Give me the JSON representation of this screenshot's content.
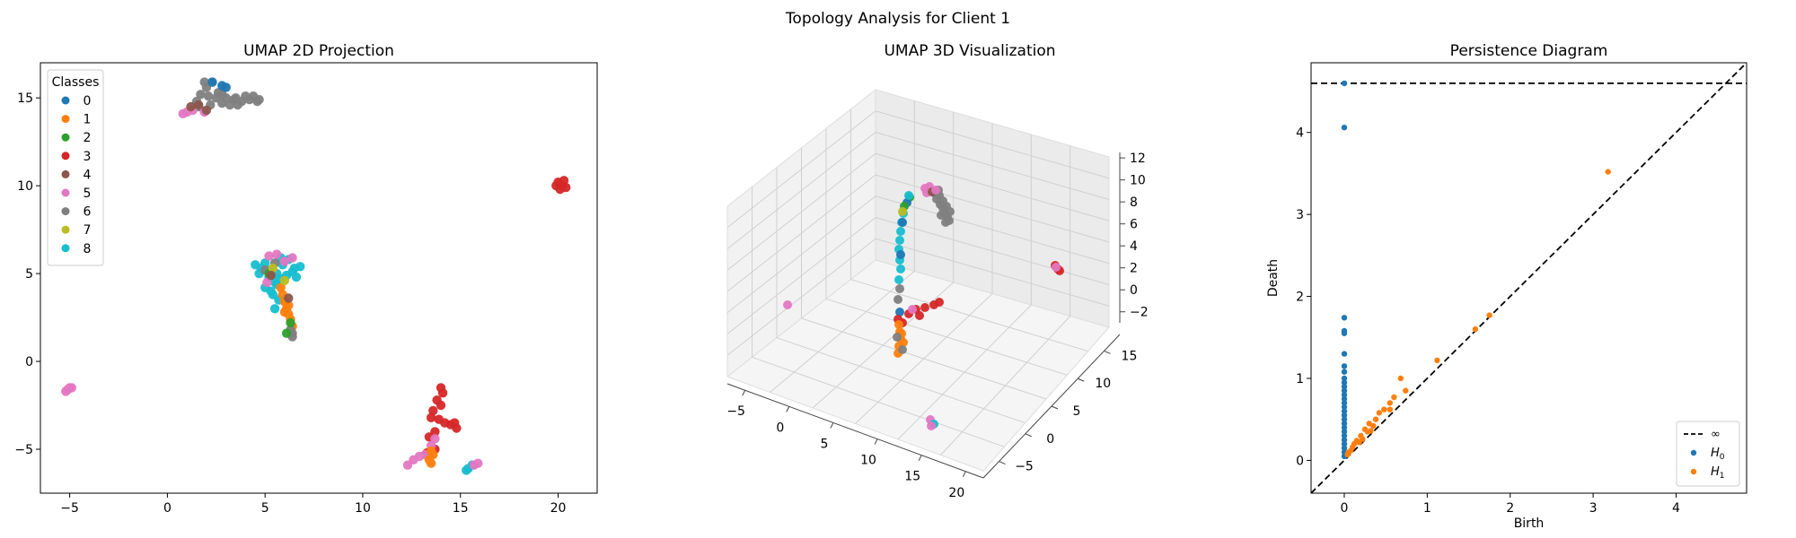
{
  "figure": {
    "title": "Topology Analysis for Client 1"
  },
  "chart_data": [
    {
      "type": "scatter",
      "title": "UMAP 2D Projection",
      "xlabel": "",
      "ylabel": "",
      "xlim": [
        -6.5,
        22
      ],
      "ylim": [
        -7.5,
        17
      ],
      "xticks": [
        -5,
        0,
        5,
        10,
        15,
        20
      ],
      "yticks": [
        -5,
        0,
        5,
        10,
        15
      ],
      "grid": false,
      "legend": {
        "title": "Classes",
        "placement": "top-left",
        "entries": [
          "0",
          "1",
          "2",
          "3",
          "4",
          "5",
          "6",
          "7",
          "8"
        ]
      },
      "class_colors": [
        "#1f77b4",
        "#ff7f0e",
        "#2ca02c",
        "#d62728",
        "#8c564b",
        "#e377c2",
        "#7f7f7f",
        "#bcbd22",
        "#17becf"
      ],
      "clusters": [
        {
          "class": "6",
          "points": [
            [
              1.7,
              15.2
            ],
            [
              2.0,
              15.6
            ],
            [
              2.3,
              15.9
            ],
            [
              2.6,
              15.3
            ],
            [
              3.0,
              15.0
            ],
            [
              3.4,
              14.9
            ],
            [
              3.8,
              14.8
            ],
            [
              4.2,
              14.9
            ],
            [
              4.6,
              14.8
            ],
            [
              1.5,
              14.8
            ],
            [
              2.2,
              14.6
            ],
            [
              2.8,
              14.7
            ],
            [
              3.6,
              14.6
            ],
            [
              4.0,
              15.1
            ],
            [
              1.9,
              15.9
            ],
            [
              2.5,
              15.0
            ],
            [
              3.2,
              14.6
            ],
            [
              4.4,
              15.1
            ],
            [
              1.6,
              14.5
            ],
            [
              2.1,
              15.1
            ],
            [
              2.8,
              15.2
            ],
            [
              3.5,
              15.0
            ],
            [
              4.7,
              14.9
            ]
          ]
        },
        {
          "class": "5",
          "points": [
            [
              0.8,
              14.1
            ],
            [
              1.0,
              14.2
            ],
            [
              1.3,
              14.3
            ],
            [
              1.9,
              14.2
            ],
            [
              -5.1,
              -1.6
            ],
            [
              -5.0,
              -1.5
            ],
            [
              -5.2,
              -1.7
            ],
            [
              -4.9,
              -1.5
            ]
          ]
        },
        {
          "class": "4",
          "points": [
            [
              1.2,
              14.5
            ],
            [
              1.6,
              14.6
            ],
            [
              2.0,
              14.3
            ]
          ]
        },
        {
          "class": "0",
          "points": [
            [
              2.3,
              15.9
            ],
            [
              2.8,
              15.7
            ],
            [
              3.0,
              15.6
            ]
          ]
        },
        {
          "class": "3",
          "points": [
            [
              20.0,
              10.2
            ],
            [
              20.2,
              10.0
            ],
            [
              20.4,
              9.9
            ],
            [
              20.1,
              9.8
            ],
            [
              20.3,
              10.3
            ],
            [
              19.9,
              10.0
            ],
            [
              14.0,
              -1.5
            ],
            [
              14.1,
              -1.8
            ],
            [
              13.8,
              -2.2
            ],
            [
              14.0,
              -2.5
            ],
            [
              13.6,
              -2.8
            ],
            [
              13.5,
              -3.2
            ],
            [
              13.9,
              -3.3
            ],
            [
              14.2,
              -3.5
            ],
            [
              14.5,
              -3.6
            ],
            [
              14.8,
              -3.8
            ],
            [
              14.7,
              -3.5
            ],
            [
              13.4,
              -4.3
            ],
            [
              13.7,
              -4.0
            ],
            [
              13.3,
              -5.2
            ],
            [
              13.7,
              -5.0
            ]
          ]
        },
        {
          "class": "8",
          "points": [
            [
              4.5,
              5.5
            ],
            [
              4.8,
              5.3
            ],
            [
              5.0,
              5.6
            ],
            [
              5.3,
              5.2
            ],
            [
              5.6,
              5.0
            ],
            [
              5.9,
              5.5
            ],
            [
              6.2,
              5.8
            ],
            [
              6.5,
              5.3
            ],
            [
              6.8,
              5.4
            ],
            [
              5.2,
              4.8
            ],
            [
              5.5,
              4.5
            ],
            [
              5.8,
              4.7
            ],
            [
              6.1,
              4.9
            ],
            [
              6.4,
              5.1
            ],
            [
              5.0,
              4.2
            ],
            [
              5.3,
              4.0
            ],
            [
              5.6,
              4.4
            ],
            [
              5.4,
              3.8
            ],
            [
              5.7,
              3.5
            ],
            [
              5.5,
              3.0
            ],
            [
              5.8,
              5.9
            ],
            [
              4.7,
              5.0
            ],
            [
              6.6,
              4.8
            ],
            [
              15.3,
              -6.2
            ],
            [
              15.6,
              -5.9
            ],
            [
              15.4,
              -6.1
            ],
            [
              13.4,
              -5.4
            ]
          ]
        },
        {
          "class": "5",
          "points": [
            [
              5.2,
              6.0
            ],
            [
              5.6,
              6.1
            ],
            [
              6.0,
              5.7
            ],
            [
              6.4,
              5.9
            ],
            [
              5.1,
              4.5
            ],
            [
              12.3,
              -5.9
            ],
            [
              12.6,
              -5.6
            ],
            [
              12.9,
              -5.4
            ],
            [
              13.2,
              -5.3
            ],
            [
              13.5,
              -4.8
            ],
            [
              13.7,
              -4.4
            ],
            [
              15.7,
              -5.9
            ],
            [
              15.9,
              -5.8
            ]
          ]
        },
        {
          "class": "1",
          "points": [
            [
              5.8,
              4.2
            ],
            [
              5.9,
              3.8
            ],
            [
              6.0,
              3.4
            ],
            [
              6.1,
              3.0
            ],
            [
              6.2,
              2.7
            ],
            [
              6.3,
              2.4
            ],
            [
              6.4,
              2.0
            ],
            [
              6.0,
              2.8
            ],
            [
              6.2,
              3.2
            ],
            [
              13.4,
              -5.6
            ],
            [
              13.5,
              -5.8
            ],
            [
              13.6,
              -5.3
            ],
            [
              13.5,
              -5.1
            ]
          ]
        },
        {
          "class": "6",
          "points": [
            [
              6.4,
              1.6
            ],
            [
              6.4,
              1.4
            ],
            [
              5.0,
              5.2
            ],
            [
              5.5,
              5.6
            ],
            [
              6.3,
              1.8
            ]
          ]
        },
        {
          "class": "2",
          "points": [
            [
              5.2,
              5.0
            ],
            [
              6.3,
              2.2
            ],
            [
              6.1,
              1.6
            ]
          ]
        },
        {
          "class": "7",
          "points": [
            [
              5.4,
              5.3
            ],
            [
              6.0,
              4.6
            ]
          ]
        },
        {
          "class": "4",
          "points": [
            [
              5.3,
              4.9
            ],
            [
              6.2,
              3.6
            ]
          ]
        }
      ]
    },
    {
      "type": "scatter",
      "title": "UMAP 3D Visualization",
      "xticks": [
        -5,
        0,
        5,
        10,
        15,
        20
      ],
      "yticks": [
        -5,
        0,
        5,
        10,
        15
      ],
      "zticks": [
        -2,
        0,
        2,
        4,
        6,
        8,
        10,
        12
      ],
      "xlim": [
        -7,
        22
      ],
      "ylim": [
        -8,
        18
      ],
      "zlim": [
        -3,
        12.5
      ],
      "grid": true
    },
    {
      "type": "scatter",
      "title": "Persistence Diagram",
      "xlabel": "Birth",
      "ylabel": "Death",
      "xlim": [
        -0.4,
        4.85
      ],
      "ylim": [
        -0.4,
        4.85
      ],
      "xticks": [
        0,
        1,
        2,
        3,
        4
      ],
      "yticks": [
        0,
        1,
        2,
        3,
        4
      ],
      "infinity_line_y": 4.6,
      "legend": {
        "placement": "bottom-right",
        "entries": [
          {
            "label": "∞",
            "kind": "dashed-line"
          },
          {
            "label": "H",
            "sub": "0",
            "kind": "point",
            "color": "#1f77b4"
          },
          {
            "label": "H",
            "sub": "1",
            "kind": "point",
            "color": "#ff7f0e"
          }
        ]
      },
      "series": [
        {
          "name": "H0",
          "color": "#1f77b4",
          "points": [
            [
              0,
              4.6
            ],
            [
              0,
              4.06
            ],
            [
              0,
              1.74
            ],
            [
              0,
              1.58
            ],
            [
              0,
              1.55
            ],
            [
              0,
              1.3
            ],
            [
              0,
              1.15
            ],
            [
              0,
              1.08
            ],
            [
              0,
              1.0
            ],
            [
              0,
              0.95
            ],
            [
              0,
              0.9
            ],
            [
              0,
              0.85
            ],
            [
              0,
              0.8
            ],
            [
              0,
              0.75
            ],
            [
              0,
              0.7
            ],
            [
              0,
              0.65
            ],
            [
              0,
              0.6
            ],
            [
              0,
              0.55
            ],
            [
              0,
              0.5
            ],
            [
              0,
              0.45
            ],
            [
              0,
              0.4
            ],
            [
              0,
              0.35
            ],
            [
              0,
              0.3
            ],
            [
              0,
              0.25
            ],
            [
              0,
              0.2
            ],
            [
              0,
              0.15
            ],
            [
              0,
              0.1
            ],
            [
              0,
              0.05
            ]
          ]
        },
        {
          "name": "H1",
          "color": "#ff7f0e",
          "points": [
            [
              3.18,
              3.52
            ],
            [
              1.12,
              1.22
            ],
            [
              1.58,
              1.6
            ],
            [
              1.75,
              1.77
            ],
            [
              0.68,
              1.0
            ],
            [
              0.74,
              0.85
            ],
            [
              0.6,
              0.77
            ],
            [
              0.55,
              0.7
            ],
            [
              0.48,
              0.62
            ],
            [
              0.55,
              0.62
            ],
            [
              0.42,
              0.58
            ],
            [
              0.38,
              0.5
            ],
            [
              0.3,
              0.45
            ],
            [
              0.35,
              0.42
            ],
            [
              0.25,
              0.38
            ],
            [
              0.28,
              0.35
            ],
            [
              0.2,
              0.3
            ],
            [
              0.22,
              0.26
            ],
            [
              0.15,
              0.24
            ],
            [
              0.12,
              0.2
            ],
            [
              0.1,
              0.16
            ],
            [
              0.08,
              0.12
            ],
            [
              0.05,
              0.1
            ],
            [
              0.04,
              0.07
            ],
            [
              0.18,
              0.22
            ],
            [
              0.32,
              0.36
            ]
          ]
        }
      ]
    }
  ]
}
